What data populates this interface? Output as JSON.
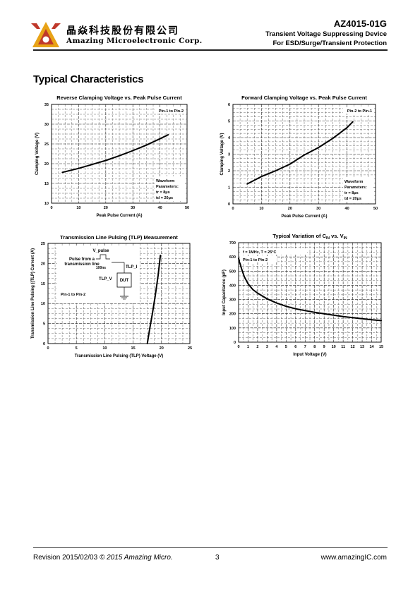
{
  "header": {
    "company_cn": "晶焱科技股份有限公司",
    "company_en": "Amazing Microelectronic Corp.",
    "part_number": "AZ4015-01G",
    "subtitle_1": "Transient Voltage Suppressing Device",
    "subtitle_2": "For ESD/Surge/Transient Protection"
  },
  "section_title": "Typical Characteristics",
  "footer": {
    "revision": "Revision 2015/02/03",
    "copyright": "© 2015 Amazing Micro.",
    "page": "3",
    "url": "www.amazingIC.com"
  },
  "chart_data": [
    {
      "type": "line",
      "title": "Reverse Clamping Voltage vs. Peak Pulse Current",
      "xlabel": "Peak Pulse Current (A)",
      "ylabel": "Clamping Voltage (V)",
      "xlim": [
        0,
        50
      ],
      "ylim": [
        10,
        35
      ],
      "xticks": [
        0,
        10,
        20,
        30,
        40,
        50
      ],
      "yticks": [
        10,
        15,
        20,
        25,
        30,
        35
      ],
      "grid": true,
      "legend": "Pin-1 to Pin-2",
      "annotation": [
        "Waveform",
        "Parameters:",
        "tr = 8μs",
        "td = 20μs"
      ],
      "series": [
        {
          "x": [
            4,
            10,
            15,
            20,
            25,
            30,
            35,
            40,
            43
          ],
          "y": [
            17.8,
            18.8,
            19.8,
            20.8,
            22.0,
            23.3,
            24.7,
            26.3,
            27.3
          ]
        }
      ]
    },
    {
      "type": "line",
      "title": "Forward Clamping Voltage vs. Peak Pulse Current",
      "xlabel": "Peak Pulse Current (A)",
      "ylabel": "Clamping Voltage (V)",
      "xlim": [
        0,
        50
      ],
      "ylim": [
        0,
        6
      ],
      "xticks": [
        0,
        10,
        20,
        30,
        40,
        50
      ],
      "yticks": [
        0,
        1,
        2,
        3,
        4,
        5,
        6
      ],
      "grid": true,
      "legend": "Pin-2 to Pin-1",
      "annotation": [
        "Waveform",
        "Parameters:",
        "tr = 8μs",
        "td = 20μs"
      ],
      "series": [
        {
          "x": [
            5,
            10,
            15,
            20,
            25,
            30,
            35,
            40,
            42
          ],
          "y": [
            1.2,
            1.65,
            2.0,
            2.4,
            2.95,
            3.4,
            3.95,
            4.6,
            4.95
          ]
        }
      ]
    },
    {
      "type": "line",
      "title": "Transmission Line Pulsing (TLP) Measurement",
      "xlabel": "Transmission Line Pulsing (TLP) Voltage (V)",
      "ylabel": "Transmission Line Pulsing ((TLP) Current (A)",
      "xlim": [
        0,
        25
      ],
      "ylim": [
        0,
        25
      ],
      "xticks": [
        0,
        5,
        10,
        15,
        20,
        25
      ],
      "yticks": [
        0,
        5,
        10,
        15,
        20,
        25
      ],
      "grid": true,
      "legend": "Pin-1 to Pin-2",
      "inset": {
        "pulse": "V_pulse",
        "source_1": "Pulse from a",
        "source_2": "transmission line",
        "width": "100ns",
        "voltage": "TLP_V",
        "current": "TLP_I",
        "device": "DUT"
      },
      "series": [
        {
          "x": [
            17.5,
            17.9,
            18.4,
            18.9,
            19.4,
            19.8
          ],
          "y": [
            0,
            3.5,
            7.5,
            12,
            17,
            22
          ]
        }
      ]
    },
    {
      "type": "line",
      "title": "Typical Variation of C",
      "title_sub1": "IN",
      "title_mid": " vs. V",
      "title_sub2": "IN",
      "xlabel": "Input Voltage (V)",
      "ylabel": "Input Capacitance (pF)",
      "xlim": [
        0,
        15
      ],
      "ylim": [
        0,
        700
      ],
      "xticks": [
        0,
        1,
        2,
        3,
        4,
        5,
        6,
        7,
        8,
        9,
        10,
        11,
        12,
        13,
        14,
        15
      ],
      "yticks": [
        0,
        100,
        200,
        300,
        400,
        500,
        600,
        700
      ],
      "grid": true,
      "legend": "Pin-1 to Pin-2",
      "annotation": [
        "f = 1MHz, T = 25°C"
      ],
      "series": [
        {
          "x": [
            0,
            0.3,
            0.6,
            1,
            1.5,
            2,
            3,
            4,
            5,
            6,
            7,
            8,
            9,
            10,
            11,
            12,
            13,
            14,
            15
          ],
          "y": [
            590,
            520,
            460,
            410,
            370,
            345,
            305,
            275,
            252,
            235,
            222,
            210,
            200,
            190,
            180,
            173,
            165,
            158,
            152
          ]
        }
      ]
    }
  ]
}
